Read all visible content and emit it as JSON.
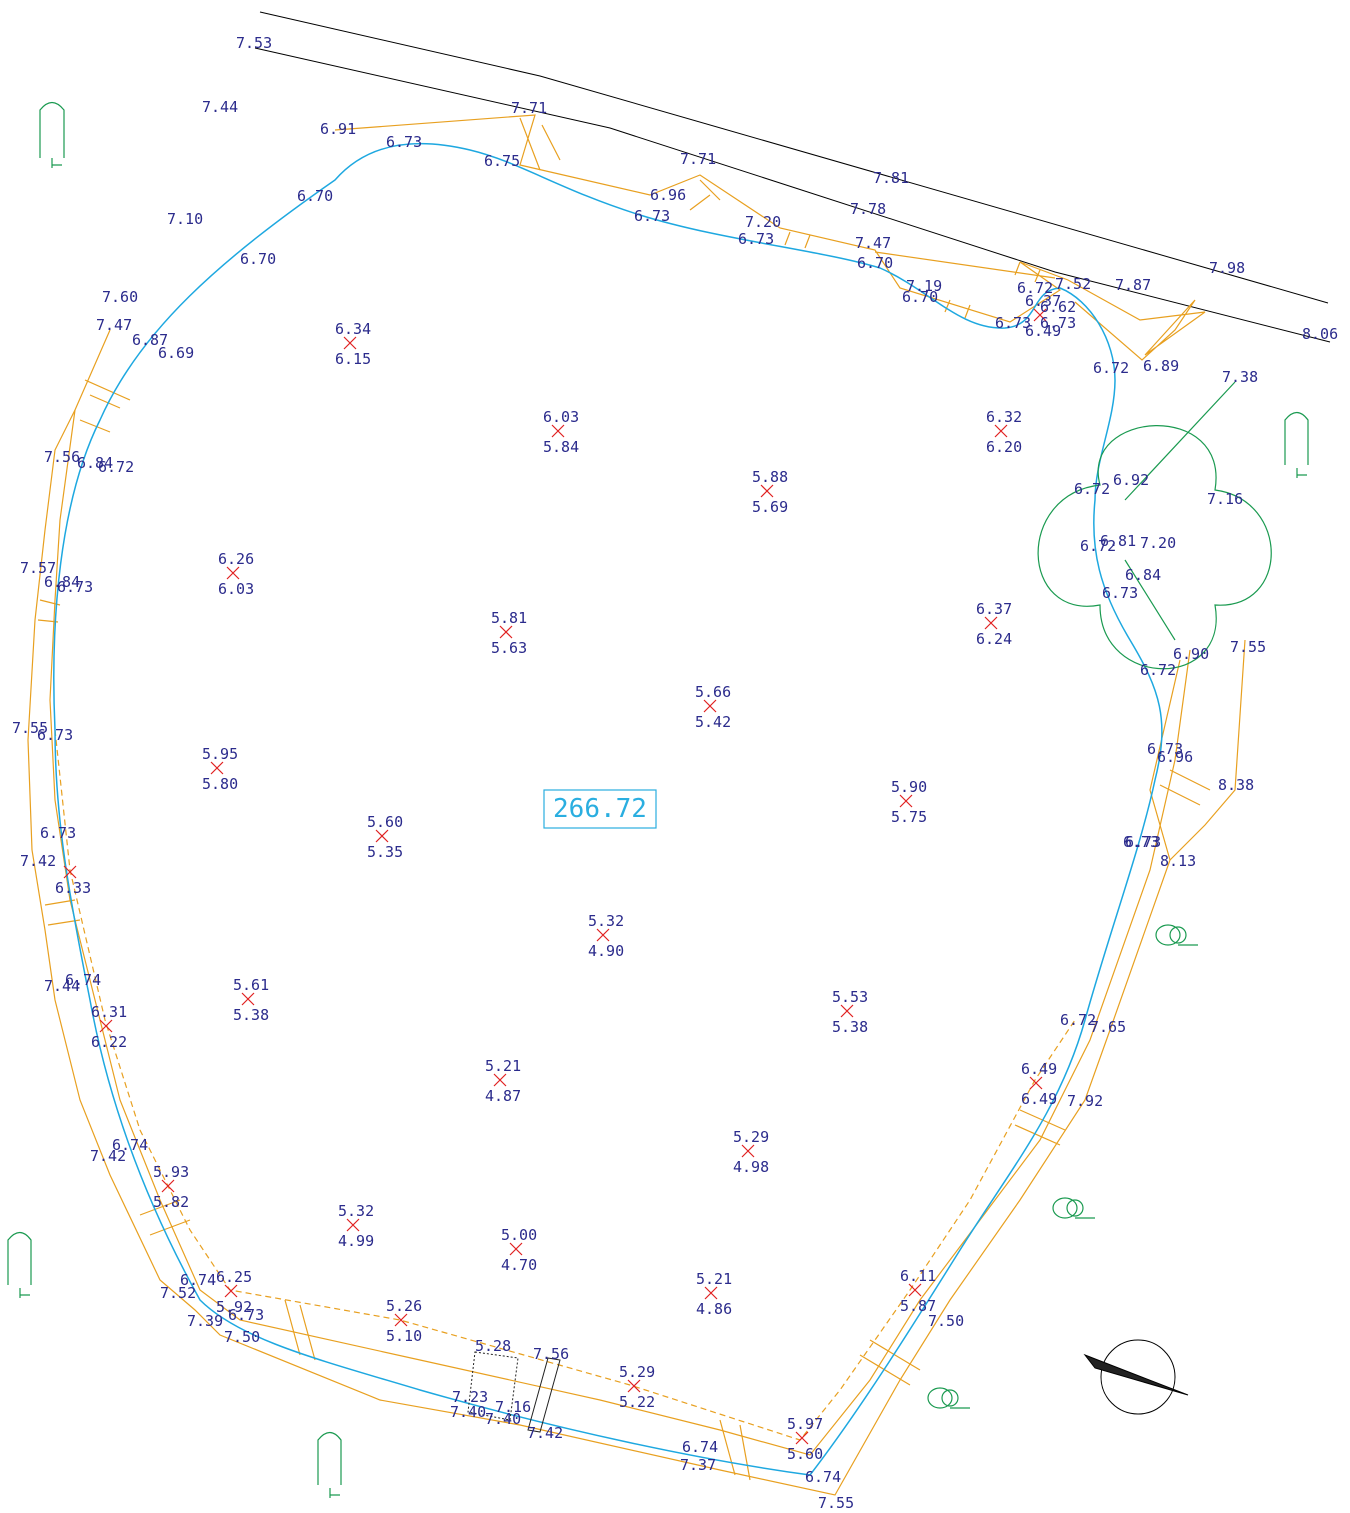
{
  "colors": {
    "road": "#000000",
    "water_edge": "#1ea8e0",
    "bank": "#e8a020",
    "vegetation": "#1a9a50",
    "bed_mark": "#e02020",
    "text": "#2b2b8c"
  },
  "area_label": "266.72",
  "road_levels": [
    "7.53",
    "7.71",
    "7.81",
    "7.98",
    "8.06",
    "7.87",
    "7.78"
  ],
  "ground_levels": [
    "7.44",
    "7.10",
    "7.60",
    "7.47",
    "7.56",
    "7.57",
    "7.55",
    "7.42",
    "7.44",
    "7.42",
    "7.52",
    "7.39",
    "7.50",
    "7.37",
    "7.55",
    "7.50",
    "7.92",
    "7.65",
    "8.13",
    "8.38",
    "7.55",
    "7.38",
    "7.16",
    "7.20",
    "6.92",
    "6.84"
  ],
  "bank_top_levels": [
    "6.91",
    "7.71",
    "6.96",
    "7.20",
    "7.47",
    "7.19",
    "7.52",
    "6.72",
    "6.89",
    "6.87",
    "6.84",
    "6.84",
    "6.73",
    "6.74",
    "6.74",
    "6.74",
    "6.73",
    "6.73",
    "6.90",
    "6.96",
    "6.81",
    "7.56"
  ],
  "water_edge_levels": [
    "6.73",
    "6.75",
    "6.70",
    "6.70",
    "6.73",
    "6.73",
    "6.70",
    "6.70",
    "6.73",
    "6.62",
    "6.69",
    "6.72",
    "6.73",
    "6.73",
    "6.72",
    "6.72",
    "6.73",
    "6.72",
    "6.72",
    "6.73",
    "6.73",
    "6.73",
    "6.74",
    "6.74",
    "6.72"
  ],
  "bed_points": [
    {
      "top": "6.34",
      "bottom": "6.15"
    },
    {
      "top": "6.03",
      "bottom": "5.84"
    },
    {
      "top": "5.88",
      "bottom": "5.69"
    },
    {
      "top": "6.32",
      "bottom": "6.20"
    },
    {
      "top": "6.26",
      "bottom": "6.03"
    },
    {
      "top": "5.81",
      "bottom": "5.63"
    },
    {
      "top": "5.66",
      "bottom": "5.42"
    },
    {
      "top": "6.37",
      "bottom": "6.24"
    },
    {
      "top": "5.95",
      "bottom": "5.80"
    },
    {
      "top": "5.60",
      "bottom": "5.35"
    },
    {
      "top": "5.90",
      "bottom": "5.75"
    },
    {
      "top": "5.32",
      "bottom": "4.90"
    },
    {
      "top": "5.61",
      "bottom": "5.38"
    },
    {
      "top": "5.53",
      "bottom": "5.38"
    },
    {
      "top": "5.21",
      "bottom": "4.87"
    },
    {
      "top": "5.29",
      "bottom": "4.98"
    },
    {
      "top": "6.49",
      "bottom": "6.49"
    },
    {
      "top": "5.93",
      "bottom": "5.82"
    },
    {
      "top": "5.32",
      "bottom": "4.99"
    },
    {
      "top": "5.00",
      "bottom": "4.70"
    },
    {
      "top": "5.21",
      "bottom": "4.86"
    },
    {
      "top": "6.11",
      "bottom": "5.87"
    },
    {
      "top": "6.25",
      "bottom": "5.92"
    },
    {
      "top": "5.26",
      "bottom": "5.10"
    },
    {
      "top": "5.29",
      "bottom": "5.22"
    },
    {
      "top": "5.97",
      "bottom": "5.60"
    },
    {
      "top": "6.31",
      "bottom": "6.22"
    },
    {
      "top": "6.37",
      "bottom": "6.49"
    },
    {
      "top": "",
      "bottom": "6.33"
    }
  ],
  "extra_labels": [
    "5.28",
    "7.23",
    "7.40",
    "7.16",
    "7.40",
    "7.42"
  ],
  "icons": {
    "north_arrow": "north-arrow-icon",
    "tree": "tree-canopy-icon",
    "lamp": "lamp-post-icon",
    "shrub": "shrub-icon"
  }
}
